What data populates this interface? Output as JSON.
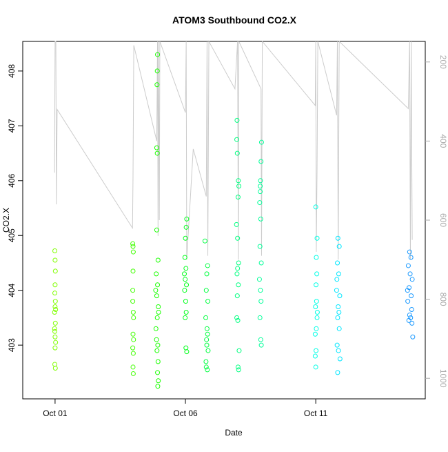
{
  "chart_data": {
    "type": "scatter",
    "title": "ATOM3 Southbound CO2.X",
    "x_label": "Date",
    "y_label": "CO2.X",
    "xlim": [
      -0.24,
      15.2
    ],
    "xticks": [
      {
        "value": 1,
        "label": "Oct 01"
      },
      {
        "value": 6,
        "label": "Oct 06"
      },
      {
        "value": 11,
        "label": "Oct 11"
      }
    ],
    "ylim": [
      402.02,
      408.54
    ],
    "yticks": [
      403,
      404,
      405,
      406,
      407,
      408
    ],
    "y2lim": [
      1052,
      148
    ],
    "y2ticks": [
      200,
      400,
      600,
      800,
      1000
    ],
    "series": [
      {
        "color": "#80ff00",
        "x": [
          0.99,
          1.0,
          1.01,
          1.0,
          0.99,
          1.01,
          1.0,
          0.98,
          1.01,
          0.99,
          1.0,
          1.02,
          1.0,
          0.99,
          1.01,
          1.02,
          0.98
        ],
        "values": [
          404.72,
          404.55,
          404.35,
          404.1,
          403.95,
          403.8,
          403.7,
          403.6,
          403.4,
          403.25,
          403.15,
          403.05,
          402.95,
          402.65,
          402.58,
          403.65,
          403.3
        ]
      },
      {
        "color": "#40ff00",
        "x": [
          3.98,
          3.99,
          4.0,
          3.99,
          3.98,
          4.0,
          3.99,
          4.01,
          3.98,
          4.0,
          3.99,
          4.0,
          4.01,
          3.98
        ],
        "values": [
          404.85,
          404.8,
          404.7,
          404.35,
          403.8,
          403.6,
          403.2,
          403.1,
          402.95,
          402.85,
          402.6,
          402.48,
          403.5,
          404.0
        ]
      },
      {
        "color": "#1aff00",
        "x": [
          4.93,
          4.92,
          4.91,
          4.9,
          4.92,
          4.9,
          4.95,
          4.88,
          4.93,
          4.9,
          4.96,
          4.92,
          4.87,
          4.94,
          4.91,
          4.95,
          4.93,
          4.96,
          4.94,
          4.89,
          4.97,
          4.86
        ],
        "values": [
          408.3,
          408.0,
          407.75,
          406.6,
          406.5,
          405.1,
          404.55,
          404.3,
          404.1,
          403.9,
          403.7,
          403.5,
          403.3,
          403.0,
          402.9,
          402.7,
          402.5,
          402.35,
          402.25,
          403.1,
          403.6,
          404.0
        ]
      },
      {
        "color": "#00ff1a",
        "x": [
          6.05,
          6.03,
          6.0,
          5.98,
          6.02,
          5.99,
          6.04,
          5.97,
          6.01,
          6.03,
          5.99,
          6.02,
          6.05,
          5.96
        ],
        "values": [
          405.3,
          405.15,
          404.95,
          404.6,
          404.4,
          404.2,
          404.1,
          404.0,
          403.8,
          403.6,
          403.5,
          402.95,
          402.88,
          404.3
        ]
      },
      {
        "color": "#00ff40",
        "x": [
          6.75,
          6.85,
          6.82,
          6.8,
          6.86,
          6.78,
          6.83,
          6.81,
          6.87,
          6.79,
          6.84,
          6.8,
          6.82,
          6.85
        ],
        "values": [
          404.9,
          404.45,
          404.3,
          404.0,
          403.8,
          403.5,
          403.3,
          403.1,
          402.9,
          402.7,
          402.55,
          402.6,
          403.0,
          403.2
        ]
      },
      {
        "color": "#00ff80",
        "x": [
          7.98,
          7.97,
          7.99,
          8.05,
          8.02,
          7.96,
          8.0,
          8.04,
          7.98,
          8.03,
          7.99,
          7.97,
          8.01,
          8.06,
          8.02,
          8.04,
          8.03,
          8.0
        ],
        "values": [
          407.1,
          406.75,
          406.5,
          405.9,
          405.7,
          405.2,
          404.95,
          404.5,
          404.3,
          404.1,
          403.9,
          403.5,
          403.45,
          402.9,
          402.6,
          402.55,
          406.0,
          404.4
        ]
      },
      {
        "color": "#00ff99",
        "x": [
          8.92,
          8.9,
          8.88,
          8.87,
          8.85,
          8.89,
          8.86,
          8.91,
          8.84,
          8.88,
          8.9,
          8.86,
          8.89,
          8.91,
          8.87
        ],
        "values": [
          406.7,
          406.35,
          406.0,
          405.8,
          405.6,
          405.3,
          404.8,
          404.5,
          404.2,
          404.0,
          403.8,
          403.5,
          403.1,
          403.0,
          405.9
        ]
      },
      {
        "color": "#00ffe6",
        "x": [
          11.0,
          11.05,
          11.02,
          11.04,
          11.01,
          11.03,
          10.99,
          11.05,
          11.02,
          10.98,
          11.01,
          10.98,
          11.0,
          11.06
        ],
        "values": [
          405.52,
          404.95,
          404.6,
          404.3,
          404.1,
          403.8,
          403.7,
          403.5,
          403.3,
          403.2,
          402.9,
          402.8,
          402.6,
          403.6
        ]
      },
      {
        "color": "#00e6ff",
        "x": [
          11.85,
          11.9,
          11.83,
          11.88,
          11.8,
          11.92,
          11.86,
          11.84,
          11.9,
          11.82,
          11.87,
          11.93,
          11.84,
          11.81,
          11.89
        ],
        "values": [
          404.95,
          404.8,
          404.5,
          404.3,
          404.0,
          403.9,
          403.7,
          403.5,
          403.3,
          403.0,
          402.9,
          402.75,
          402.5,
          404.2,
          403.6
        ]
      },
      {
        "color": "#1a99ff",
        "x": [
          14.6,
          14.65,
          14.55,
          14.62,
          14.7,
          14.58,
          14.66,
          14.53,
          14.68,
          14.6,
          14.64,
          14.57,
          14.69,
          14.72,
          14.52
        ],
        "values": [
          404.7,
          404.6,
          404.45,
          404.3,
          404.2,
          404.05,
          403.9,
          403.8,
          403.65,
          403.55,
          403.5,
          403.45,
          403.4,
          403.15,
          404.0
        ]
      },
      {
        "type": "line",
        "axis": "y2",
        "color": "#cccccc",
        "x": [
          0.98,
          1.0,
          1.03,
          1.05,
          1.08,
          3.97,
          3.99,
          4.02,
          4.9,
          4.93,
          4.95,
          4.97,
          5.0,
          5.02,
          6.0,
          6.03,
          6.05,
          6.3,
          6.8,
          6.83,
          6.86,
          6.9,
          7.9,
          8.0,
          8.03,
          8.05,
          8.9,
          8.92,
          8.95,
          10.98,
          11.0,
          11.02,
          11.05,
          11.08,
          11.8,
          11.83,
          11.86,
          11.9,
          14.55,
          14.6,
          14.63,
          14.66,
          14.7
        ],
        "values": [
          480,
          148,
          148,
          560,
          320,
          620,
          490,
          158,
          400,
          148,
          640,
          148,
          600,
          148,
          328,
          148,
          700,
          420,
          540,
          148,
          690,
          148,
          268,
          148,
          700,
          148,
          268,
          690,
          148,
          310,
          148,
          680,
          470,
          148,
          335,
          148,
          700,
          148,
          318,
          148,
          700,
          148,
          650
        ]
      }
    ]
  }
}
